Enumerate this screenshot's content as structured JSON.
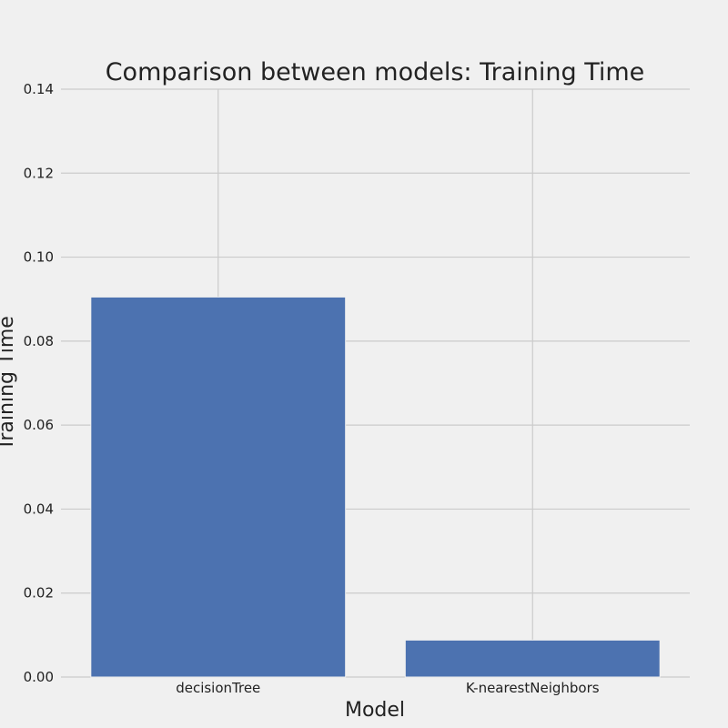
{
  "chart_data": {
    "type": "bar",
    "title": "Comparison between models: Training Time",
    "xlabel": "Model",
    "ylabel": "Training Time",
    "categories": [
      "decisionTree",
      "K-nearestNeighbors"
    ],
    "values": [
      0.0905,
      0.0088
    ],
    "ylim": [
      0,
      0.14
    ],
    "yticks": [
      0.0,
      0.02,
      0.04,
      0.06,
      0.08,
      0.1,
      0.12,
      0.14
    ],
    "ytick_labels": [
      "0.00",
      "0.02",
      "0.04",
      "0.06",
      "0.08",
      "0.10",
      "0.12",
      "0.14"
    ],
    "grid": true,
    "legend": "none",
    "colors": {
      "bar": "#4c72b0",
      "background": "#f0f0f0",
      "grid": "#cbcbcb",
      "text": "#222222"
    }
  }
}
